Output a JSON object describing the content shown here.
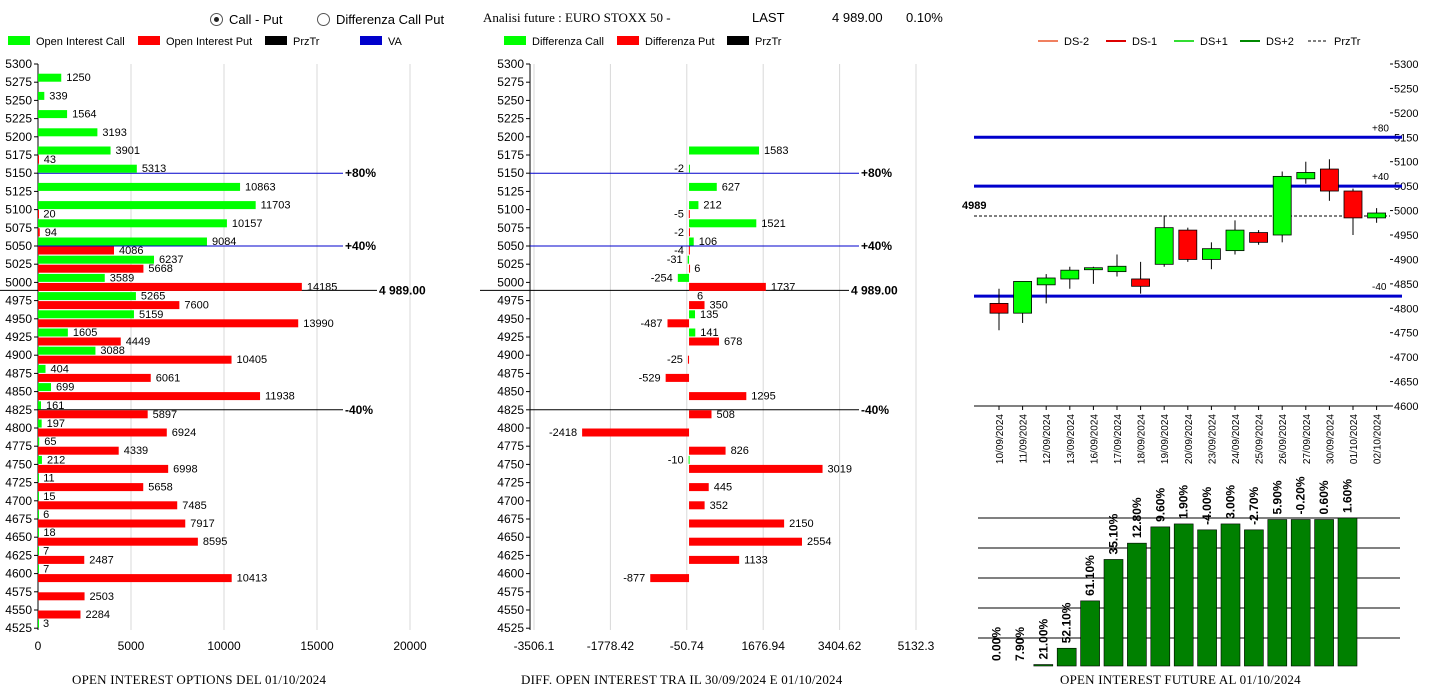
{
  "controls": {
    "radio_call_put": "Call - Put",
    "radio_diff": "Differenza Call Put",
    "analysis_title": "Analisi future : EURO STOXX 50 -",
    "last_label": "LAST",
    "last_value": "4 989.00",
    "last_change": "0.10%"
  },
  "footers": {
    "oi_options": "OPEN INTEREST OPTIONS DEL 01/10/2024",
    "diff_oi": "DIFF. OPEN INTEREST TRA IL 30/09/2024 E 01/10/2024",
    "oi_future": "OPEN INTEREST FUTURE AL 01/10/2024"
  },
  "colors": {
    "green": "#00ff00",
    "red": "#ff0000",
    "dark_green": "#008000",
    "blue": "#0000cc",
    "black": "#000000"
  },
  "chart_data": [
    {
      "type": "bar",
      "orientation": "horizontal",
      "legend": [
        "Open Interest Call",
        "Open Interest Put",
        "PrzTr",
        "VA"
      ],
      "strikes": [
        "5300",
        "5275",
        "5250",
        "5225",
        "5200",
        "5175",
        "5150",
        "5125",
        "5100",
        "5075",
        "5050",
        "5025",
        "5000",
        "4975",
        "4950",
        "4925",
        "4900",
        "4875",
        "4850",
        "4825",
        "4800",
        "4775",
        "4750",
        "4725",
        "4700",
        "4675",
        "4650",
        "4625",
        "4600",
        "4575",
        "4550",
        "4525"
      ],
      "series": [
        {
          "name": "Open Interest Call",
          "values": [
            null,
            1250,
            339,
            1564,
            3193,
            3901,
            5313,
            10863,
            11703,
            10157,
            9084,
            6237,
            3589,
            5265,
            5159,
            1605,
            3088,
            404,
            699,
            161,
            197,
            65,
            212,
            11,
            15,
            6,
            18,
            7,
            7,
            null,
            null,
            3
          ]
        },
        {
          "name": "Open Interest Put",
          "values": [
            null,
            null,
            null,
            null,
            null,
            43,
            null,
            null,
            20,
            94,
            4086,
            5668,
            14185,
            7600,
            13990,
            4449,
            10405,
            6061,
            11938,
            5897,
            6924,
            4339,
            6998,
            5658,
            7485,
            7917,
            8595,
            2487,
            10413,
            2503,
            2284,
            null
          ]
        }
      ],
      "xlim": [
        0,
        20000
      ],
      "x_ticks": [
        "0",
        "5000",
        "10000",
        "15000",
        "20000"
      ],
      "annotations": [
        {
          "strike": "5150",
          "label": "+80%"
        },
        {
          "strike": "5050",
          "label": "+40%"
        },
        {
          "strike": "4825",
          "label": "-40%"
        },
        {
          "level": 4989,
          "label": "4 989.00"
        }
      ]
    },
    {
      "type": "bar",
      "orientation": "horizontal",
      "legend": [
        "Differenza Call",
        "Differenza Put",
        "PrzTr"
      ],
      "strikes": [
        "5300",
        "5275",
        "5250",
        "5225",
        "5200",
        "5175",
        "5150",
        "5125",
        "5100",
        "5075",
        "5050",
        "5025",
        "5000",
        "4975",
        "4950",
        "4925",
        "4900",
        "4875",
        "4850",
        "4825",
        "4800",
        "4775",
        "4750",
        "4725",
        "4700",
        "4675",
        "4650",
        "4625",
        "4600",
        "4575",
        "4550",
        "4525"
      ],
      "series": [
        {
          "name": "Differenza Call",
          "values": [
            null,
            null,
            null,
            null,
            null,
            1583,
            -2,
            627,
            212,
            1521,
            106,
            -31,
            -254,
            null,
            135,
            141,
            null,
            null,
            null,
            null,
            null,
            null,
            -10,
            null,
            null,
            null,
            null,
            null,
            null,
            null,
            null,
            null
          ]
        },
        {
          "name": "Differenza Put",
          "values": [
            null,
            null,
            null,
            null,
            null,
            null,
            null,
            null,
            -5,
            -2,
            -4,
            6,
            1737,
            350,
            -487,
            678,
            -25,
            -529,
            1295,
            508,
            -2418,
            826,
            3019,
            445,
            352,
            2150,
            2554,
            1133,
            -877,
            null,
            null,
            null
          ]
        }
      ],
      "extra_labels": [
        {
          "strike": "4975",
          "label": "6"
        }
      ],
      "xlim": [
        -3506.1,
        5132.3
      ],
      "x_ticks": [
        "-3506.1",
        "-1778.42",
        "-50.74",
        "1676.94",
        "3404.62",
        "5132.3"
      ],
      "annotations": [
        {
          "strike": "5150",
          "label": "+80%"
        },
        {
          "strike": "5050",
          "label": "+40%"
        },
        {
          "strike": "4825",
          "label": "-40%"
        },
        {
          "level": 4989,
          "label": "4 989.00"
        }
      ]
    },
    {
      "type": "candlestick",
      "legend": [
        "DS-2",
        "DS-1",
        "DS+1",
        "DS+2",
        "PrzTr"
      ],
      "dates": [
        "10/09/2024",
        "11/09/2024",
        "12/09/2024",
        "13/09/2024",
        "16/09/2024",
        "17/09/2024",
        "18/09/2024",
        "19/09/2024",
        "20/09/2024",
        "23/09/2024",
        "24/09/2024",
        "25/09/2024",
        "26/09/2024",
        "27/09/2024",
        "30/09/2024",
        "01/10/2024",
        "02/10/2024"
      ],
      "candles": [
        {
          "o": 4810,
          "h": 4840,
          "l": 4755,
          "c": 4790
        },
        {
          "o": 4790,
          "h": 4855,
          "l": 4770,
          "c": 4855
        },
        {
          "o": 4848,
          "h": 4870,
          "l": 4810,
          "c": 4862
        },
        {
          "o": 4860,
          "h": 4885,
          "l": 4840,
          "c": 4878
        },
        {
          "o": 4880,
          "h": 4885,
          "l": 4850,
          "c": 4883
        },
        {
          "o": 4875,
          "h": 4910,
          "l": 4865,
          "c": 4886
        },
        {
          "o": 4860,
          "h": 4895,
          "l": 4830,
          "c": 4845
        },
        {
          "o": 4890,
          "h": 4990,
          "l": 4885,
          "c": 4965
        },
        {
          "o": 4960,
          "h": 4965,
          "l": 4895,
          "c": 4900
        },
        {
          "o": 4900,
          "h": 4935,
          "l": 4880,
          "c": 4922
        },
        {
          "o": 4918,
          "h": 4980,
          "l": 4910,
          "c": 4960
        },
        {
          "o": 4955,
          "h": 4960,
          "l": 4930,
          "c": 4935
        },
        {
          "o": 4950,
          "h": 5080,
          "l": 4935,
          "c": 5070
        },
        {
          "o": 5065,
          "h": 5100,
          "l": 5055,
          "c": 5078
        },
        {
          "o": 5085,
          "h": 5105,
          "l": 5020,
          "c": 5040
        },
        {
          "o": 5040,
          "h": 5045,
          "l": 4950,
          "c": 4985
        },
        {
          "o": 4985,
          "h": 5005,
          "l": 4975,
          "c": 4995
        }
      ],
      "levels": [
        {
          "value": 5150,
          "label": "+80"
        },
        {
          "value": 5050,
          "label": "+40"
        },
        {
          "value": 4825,
          "label": "-40"
        }
      ],
      "przTr": {
        "value": 4989,
        "label": "4989"
      },
      "ylim": [
        4600,
        5300
      ],
      "y_ticks": [
        "5300",
        "5250",
        "5200",
        "5150",
        "5100",
        "5050",
        "5000",
        "4950",
        "4900",
        "4850",
        "4800",
        "4750",
        "4700",
        "4650",
        "4600"
      ]
    },
    {
      "type": "bar",
      "bar_heights": [
        0.0,
        0.0,
        0.01,
        0.12,
        0.44,
        0.72,
        0.83,
        0.94,
        0.96,
        0.92,
        0.96,
        0.92,
        0.99,
        0.99,
        0.99,
        1.0
      ],
      "labels": [
        "0.00%",
        "7.90%",
        "21.00%",
        "52.10%",
        "61.10%",
        "35.10%",
        "12.80%",
        "9.60%",
        "1.90%",
        "-4.00%",
        "3.00%",
        "-2.70%",
        "5.90%",
        "-0.20%",
        "0.60%",
        "1.60%"
      ]
    }
  ]
}
